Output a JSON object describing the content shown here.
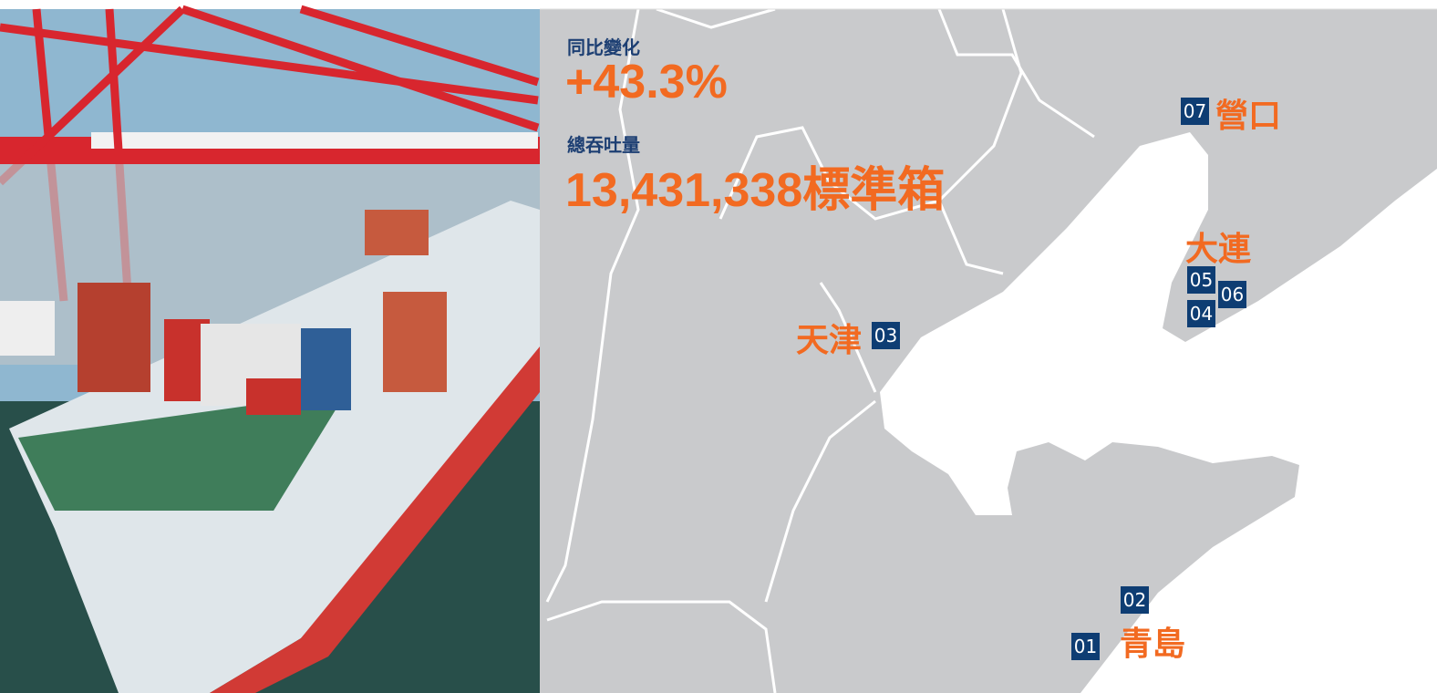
{
  "stats": [
    {
      "label": "同比變化",
      "value": "+43.3%"
    },
    {
      "label": "總吞吐量",
      "value": "13,431,338標準箱"
    }
  ],
  "ports": [
    {
      "name": "營口",
      "badges": [
        "07"
      ]
    },
    {
      "name": "大連",
      "badges": [
        "05",
        "06",
        "04"
      ]
    },
    {
      "name": "天津",
      "badges": [
        "03"
      ]
    },
    {
      "name": "青島",
      "badges": [
        "02",
        "01"
      ]
    }
  ]
}
